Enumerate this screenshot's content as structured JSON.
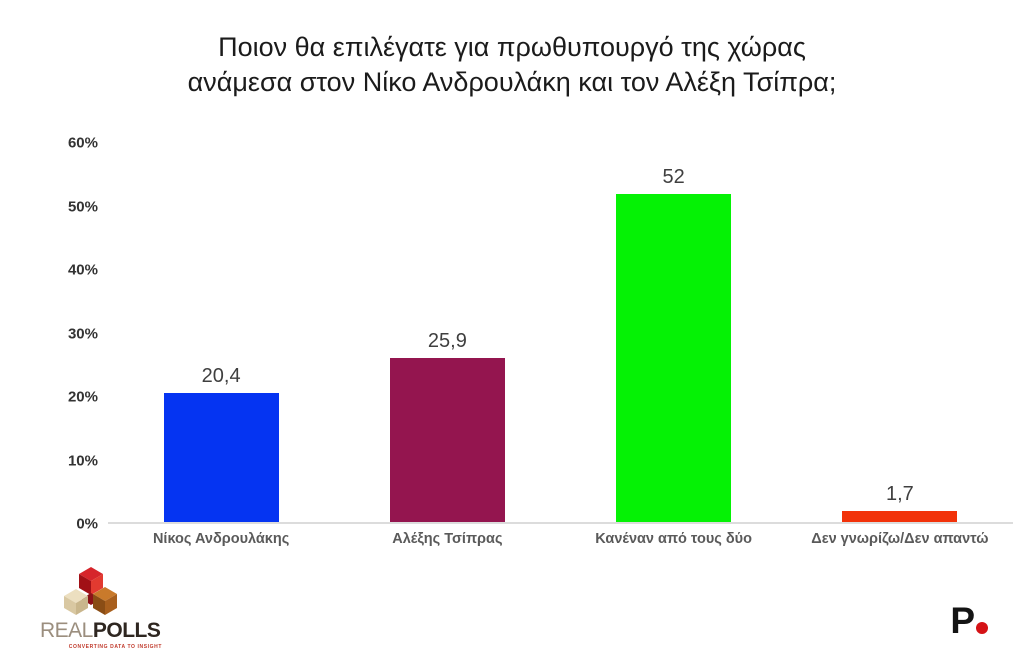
{
  "title": "Ποιον θα επιλέγατε για πρωθυπουργό της χώρας\nανάμεσα στον Νίκο Ανδρουλάκη και τον Αλέξη Τσίπρα;",
  "chart_data": {
    "type": "bar",
    "title": "Ποιον θα επιλέγατε για πρωθυπουργό της χώρας ανάμεσα στον Νίκο Ανδρουλάκη και τον Αλέξη Τσίπρα;",
    "categories": [
      "Νίκος Ανδρουλάκης",
      "Αλέξης Τσίπρας",
      "Κανέναν από τους δύο",
      "Δεν γνωρίζω/Δεν απαντώ"
    ],
    "values": [
      20.4,
      25.9,
      52,
      1.7
    ],
    "value_labels": [
      "20,4",
      "25,9",
      "52",
      "1,7"
    ],
    "colors": [
      "#0534f2",
      "#94154f",
      "#05f205",
      "#f23209"
    ],
    "yticks": [
      "60%",
      "50%",
      "40%",
      "30%",
      "20%",
      "10%",
      "0%"
    ],
    "ylim": [
      0,
      60
    ],
    "xlabel": "",
    "ylabel": "",
    "grid": false,
    "legend": false
  },
  "footer": {
    "left_logo": {
      "icon": "realpolls-cube-icon",
      "brand_light": "REAL",
      "brand_bold": "POLLS",
      "tagline": "CONVERTING DATA TO INSIGHT"
    },
    "right_logo": {
      "letter": "P",
      "dot_icon": "red-dot-icon"
    }
  }
}
